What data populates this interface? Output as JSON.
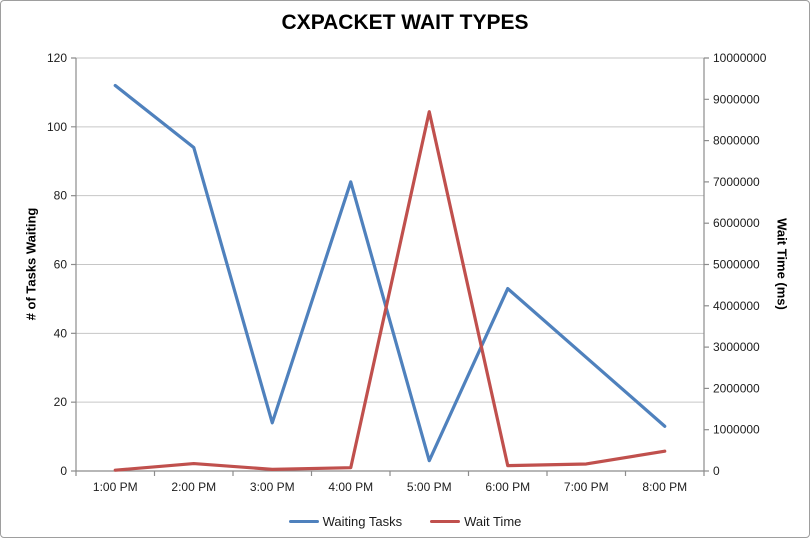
{
  "chart_data": {
    "type": "line",
    "title": "CXPACKET WAIT TYPES",
    "categories": [
      "1:00 PM",
      "2:00 PM",
      "3:00 PM",
      "4:00 PM",
      "5:00 PM",
      "6:00 PM",
      "7:00 PM",
      "8:00 PM"
    ],
    "series": [
      {
        "name": "Waiting Tasks",
        "axis": "left",
        "color": "#4F81BD",
        "values": [
          112,
          94,
          14,
          84,
          3,
          53,
          33,
          13
        ]
      },
      {
        "name": "Wait Time",
        "axis": "right",
        "color": "#C0504D",
        "values": [
          20000,
          180000,
          40000,
          80000,
          8700000,
          130000,
          170000,
          480000
        ]
      }
    ],
    "left_axis": {
      "label": "# of Tasks Waiting",
      "min": 0,
      "max": 120,
      "ticks": [
        0,
        20,
        40,
        60,
        80,
        100,
        120
      ]
    },
    "right_axis": {
      "label": "Wait Time (ms)",
      "min": 0,
      "max": 10000000,
      "ticks": [
        0,
        1000000,
        2000000,
        3000000,
        4000000,
        5000000,
        6000000,
        7000000,
        8000000,
        9000000,
        10000000
      ]
    },
    "grid": true,
    "legend_position": "bottom"
  },
  "colors": {
    "gridline": "#C6C6C6",
    "axis": "#8C8C8C",
    "tick_text": "#1c1c1c",
    "frame_border": "#9e9e9e",
    "background": "#ffffff"
  }
}
